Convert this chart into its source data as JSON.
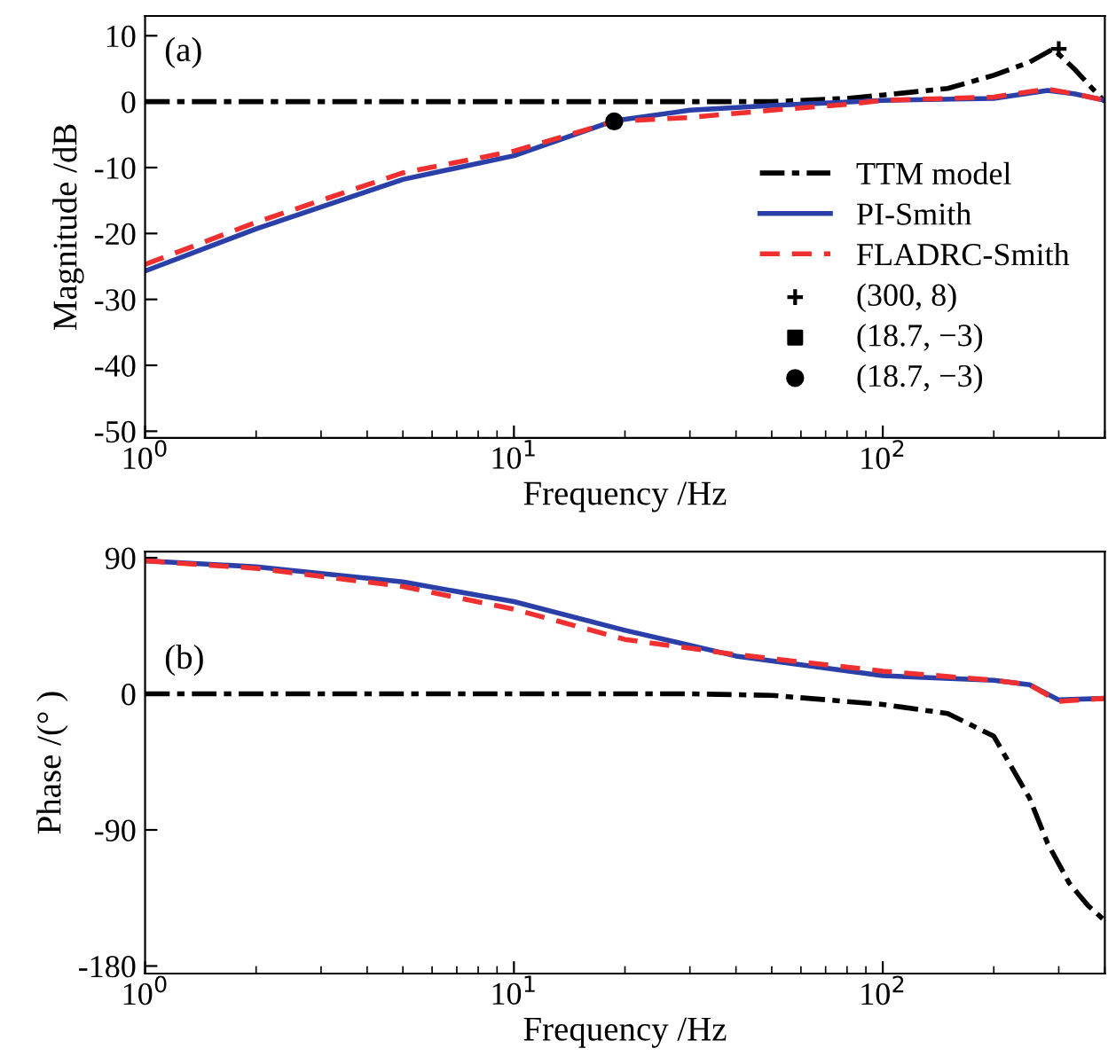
{
  "chart_data": [
    {
      "type": "line",
      "annotations": [
        "(a)"
      ],
      "xlabel": "Frequency /Hz",
      "ylabel": "Magnitude /dB",
      "log": "x",
      "xlim": [
        1,
        400
      ],
      "xticks": [
        {
          "value": 1,
          "label": "10$^{0}$"
        },
        {
          "value": 10,
          "label": "10$^{1}$"
        },
        {
          "value": 100,
          "label": "10$^{2}$"
        }
      ],
      "ylim": [
        -51,
        13
      ],
      "yticks": [
        -50,
        -40,
        -30,
        -20,
        -10,
        0,
        10
      ],
      "legend": "right",
      "grid": false,
      "series": [
        {
          "name": "TTM model",
          "color": "#000000",
          "line_style": "dashdot",
          "x": [
            1,
            10,
            30,
            50,
            80,
            100,
            150,
            200,
            250,
            290,
            330,
            370,
            400
          ],
          "values": [
            0,
            0,
            0,
            0,
            0.5,
            1,
            2,
            4,
            6,
            8,
            5,
            2,
            0
          ]
        },
        {
          "name": "PI-Smith",
          "color": "#2b3fa8",
          "line_style": "solid",
          "x": [
            1,
            2,
            5,
            10,
            18.7,
            30,
            50,
            100,
            200,
            280,
            330,
            400
          ],
          "values": [
            -25.7,
            -19.3,
            -11.8,
            -8.2,
            -2.9,
            -1.3,
            -0.6,
            0.2,
            0.5,
            1.7,
            1.2,
            0.2
          ]
        },
        {
          "name": "FLADRC-Smith",
          "color": "#f03030",
          "line_style": "dashed",
          "x": [
            1,
            2,
            5,
            10,
            18.7,
            30,
            50,
            80,
            100,
            200,
            280,
            330,
            400
          ],
          "values": [
            -24.7,
            -18.3,
            -10.8,
            -7.5,
            -3,
            -2.4,
            -1.3,
            -0.4,
            0.2,
            0.7,
            1.9,
            1.2,
            0.2
          ]
        },
        {
          "type": "scatter",
          "name": "(300, 8)",
          "color": "#000000",
          "marker": "cross",
          "x": [
            300
          ],
          "values": [
            8
          ]
        },
        {
          "type": "scatter",
          "name": "(18.7, −3)",
          "color": "#000000",
          "marker": "square",
          "x": [
            null
          ],
          "values": [
            null
          ]
        },
        {
          "type": "scatter",
          "name": "(18.7, −3)",
          "color": "#000000",
          "marker": "circle",
          "x": [
            18.7
          ],
          "values": [
            -3
          ]
        }
      ]
    },
    {
      "type": "line",
      "annotations": [
        "(b)"
      ],
      "xlabel": "Frequency /Hz",
      "ylabel": "Phase /(° )",
      "log": "x",
      "xlim": [
        1,
        400
      ],
      "xticks": [
        {
          "value": 1,
          "label": "10$^{0}$"
        },
        {
          "value": 10,
          "label": "10$^{1}$"
        },
        {
          "value": 100,
          "label": "10$^{2}$"
        }
      ],
      "ylim": [
        -185,
        94
      ],
      "yticks": [
        -180,
        -90,
        0,
        90
      ],
      "legend": false,
      "grid": false,
      "series": [
        {
          "color": "#000000",
          "line_style": "dashdot",
          "x": [
            1,
            10,
            30,
            50,
            100,
            150,
            200,
            250,
            280,
            320,
            360,
            400
          ],
          "values": [
            0,
            0,
            0,
            -1,
            -7,
            -13,
            -28,
            -69,
            -99,
            -125,
            -140,
            -150
          ]
        },
        {
          "color": "#2b3fa8",
          "line_style": "solid",
          "x": [
            1,
            2,
            5,
            10,
            20,
            40,
            100,
            200,
            250,
            300,
            400
          ],
          "values": [
            88,
            84,
            74,
            61,
            42,
            25,
            12,
            9,
            6,
            -4,
            -3
          ]
        },
        {
          "color": "#f03030",
          "line_style": "dashed",
          "x": [
            1,
            2,
            5,
            10,
            20,
            40,
            100,
            200,
            250,
            300,
            400
          ],
          "values": [
            88,
            83,
            71,
            56,
            36,
            26,
            15,
            9,
            6,
            -5,
            -3
          ]
        }
      ]
    }
  ]
}
